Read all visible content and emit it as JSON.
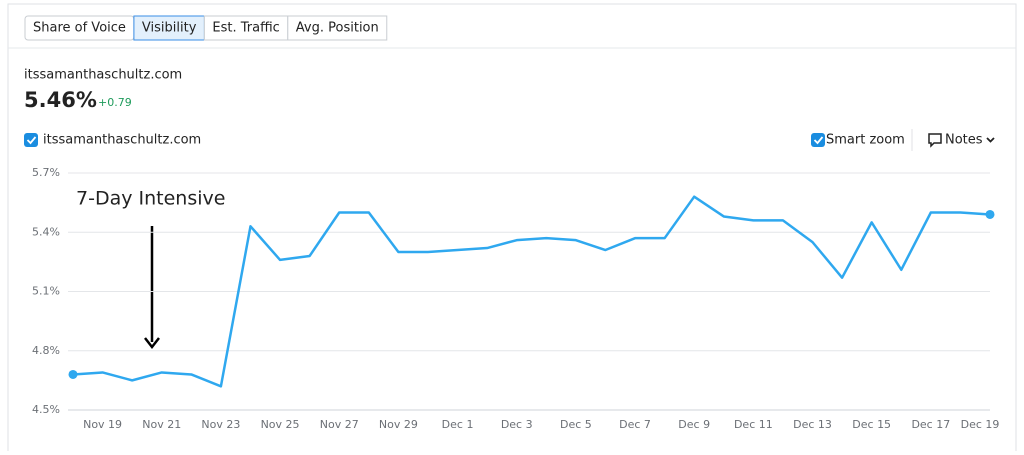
{
  "tabs": [
    {
      "label": "Share of Voice",
      "active": false
    },
    {
      "label": "Visibility",
      "active": true
    },
    {
      "label": "Est. Traffic",
      "active": false
    },
    {
      "label": "Avg. Position",
      "active": false
    }
  ],
  "domain": "itssamanthaschultz.com",
  "metric": {
    "value": "5.46%",
    "change": "+0.79"
  },
  "controls": {
    "smart_zoom": "Smart zoom",
    "notes": "Notes"
  },
  "chart_data": {
    "type": "line",
    "categories": [
      null,
      "Nov 19",
      null,
      "Nov 21",
      null,
      "Nov 23",
      null,
      "Nov 25",
      null,
      "Nov 27",
      null,
      "Nov 29",
      null,
      "Dec 1",
      null,
      "Dec 3",
      null,
      "Dec 5",
      null,
      "Dec 7",
      null,
      "Dec 9",
      null,
      "Dec 11",
      null,
      "Dec 13",
      null,
      "Dec 15",
      null,
      "Dec 17",
      null,
      "Dec 19"
    ],
    "series": [
      {
        "name": "itssamanthaschultz.com",
        "color": "#2fa8ef",
        "values": [
          4.68,
          4.69,
          4.65,
          4.69,
          4.68,
          4.62,
          5.43,
          5.26,
          5.28,
          5.5,
          5.5,
          5.3,
          5.3,
          5.31,
          5.32,
          5.36,
          5.37,
          5.36,
          5.31,
          5.37,
          5.37,
          5.58,
          5.48,
          5.46,
          5.46,
          5.35,
          5.17,
          5.45,
          5.21,
          5.5,
          5.5,
          5.49
        ]
      }
    ],
    "ylim": [
      4.5,
      5.7
    ],
    "yticks": [
      {
        "value": 4.5,
        "label": "4.5%"
      },
      {
        "value": 4.8,
        "label": "4.8%"
      },
      {
        "value": 5.1,
        "label": "5.1%"
      },
      {
        "value": 5.4,
        "label": "5.4%"
      },
      {
        "value": 5.7,
        "label": "5.7%"
      }
    ],
    "grid": true,
    "annotation": "7-Day Intensive"
  }
}
